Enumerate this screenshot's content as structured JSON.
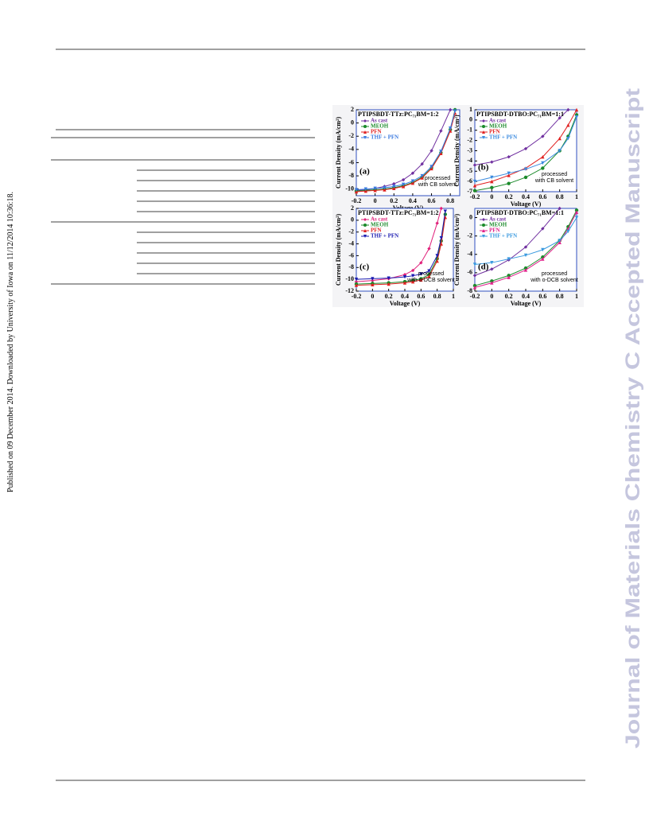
{
  "side_note": "Published on 09 December 2014. Downloaded by University of Iowa on 11/12/2014 10:36:18.",
  "watermark": "Journal of Materials Chemistry C Accepted Manuscript",
  "chart_data": [
    {
      "type": "line",
      "title": "PTIPSBDT-TTz:PC₇₁BM=1:2",
      "panel": "(a)",
      "annotation": [
        "processed",
        "with CB solvent"
      ],
      "x_label": "Voltage (V)",
      "y_label": "Current Density (mA/cm²)",
      "x": [
        -0.2,
        -0.1,
        0,
        0.1,
        0.2,
        0.3,
        0.4,
        0.5,
        0.6,
        0.7,
        0.8,
        0.85
      ],
      "xlim": [
        -0.2,
        0.9
      ],
      "ylim": [
        -11,
        2
      ],
      "xticks": [
        -0.2,
        0,
        0.2,
        0.4,
        0.6,
        0.8
      ],
      "yticks": [
        -10,
        -8,
        -6,
        -4,
        -2,
        0,
        2
      ],
      "series": [
        {
          "name": "As cast",
          "color": "#7030a0",
          "values": [
            -10.2,
            -10.1,
            -9.9,
            -9.6,
            -9.2,
            -8.6,
            -7.6,
            -6.2,
            -4.2,
            -1.2,
            2,
            null
          ]
        },
        {
          "name": "MEOH",
          "color": "#1a8a2a",
          "values": [
            -10.3,
            -10.2,
            -10.1,
            -10,
            -9.8,
            -9.5,
            -9.0,
            -8.2,
            -6.8,
            -4.5,
            -1,
            2
          ]
        },
        {
          "name": "PFN",
          "color": "#e02020",
          "values": [
            -10.4,
            -10.3,
            -10.2,
            -10.1,
            -9.9,
            -9.6,
            -9.1,
            -8.3,
            -6.9,
            -4.6,
            -1.2,
            1.5
          ]
        },
        {
          "name": "THF + PFN",
          "color": "#3a7adf",
          "values": [
            -10.1,
            -10,
            -9.9,
            -9.8,
            -9.6,
            -9.3,
            -8.8,
            -8.0,
            -6.6,
            -4.3,
            -0.8,
            1.8
          ]
        }
      ]
    },
    {
      "type": "line",
      "title": "PTIPSBDT-DTBO:PC₇₁BM=1:1",
      "panel": "(b)",
      "annotation": [
        "processed",
        "with CB solvent"
      ],
      "x_label": "Voltage (V)",
      "y_label": "Current Density (mA/cm²)",
      "x": [
        -0.2,
        0,
        0.2,
        0.4,
        0.6,
        0.8,
        0.9,
        1
      ],
      "xlim": [
        -0.2,
        1
      ],
      "ylim": [
        -7,
        1
      ],
      "xticks": [
        -0.2,
        0,
        0.2,
        0.4,
        0.6,
        0.8,
        1
      ],
      "yticks": [
        -7,
        -6,
        -5,
        -4,
        -3,
        -2,
        -1,
        0,
        1
      ],
      "series": [
        {
          "name": "As cast",
          "color": "#7030a0",
          "values": [
            -4.4,
            -4.1,
            -3.6,
            -2.8,
            -1.6,
            0.2,
            1,
            null
          ]
        },
        {
          "name": "MEOH",
          "color": "#1a8a2a",
          "values": [
            -6.9,
            -6.6,
            -6.2,
            -5.6,
            -4.7,
            -3.0,
            -1.6,
            0.5
          ]
        },
        {
          "name": "PFN",
          "color": "#e02020",
          "values": [
            -6.4,
            -6.0,
            -5.4,
            -4.7,
            -3.6,
            -1.8,
            -0.5,
            1
          ]
        },
        {
          "name": "THF + PFN",
          "color": "#3a8adf",
          "values": [
            -6.0,
            -5.6,
            -5.2,
            -4.8,
            -4.2,
            -3.0,
            -1.8,
            0.3
          ]
        }
      ]
    },
    {
      "type": "line",
      "title": "PTIPSBDT-TTz:PC₇₁BM=1:2",
      "panel": "(c)",
      "annotation": [
        "processed",
        "with o-DCB solvent"
      ],
      "x_label": "Voltage (V)",
      "y_label": "Current Density (mA/cm²)",
      "x": [
        -0.2,
        0,
        0.2,
        0.4,
        0.5,
        0.6,
        0.7,
        0.8,
        0.85,
        0.9
      ],
      "xlim": [
        -0.2,
        1
      ],
      "ylim": [
        -12,
        2
      ],
      "xticks": [
        -0.2,
        0,
        0.2,
        0.4,
        0.6,
        0.8,
        1
      ],
      "yticks": [
        -12,
        -10,
        -8,
        -6,
        -4,
        -2,
        0,
        2
      ],
      "series": [
        {
          "name": "As cast",
          "color": "#e0207a",
          "values": [
            -10.4,
            -10.2,
            -9.9,
            -9.2,
            -8.5,
            -7.2,
            -4.8,
            -0.5,
            2,
            null
          ]
        },
        {
          "name": "MEOH",
          "color": "#1a8a2a",
          "values": [
            -10.8,
            -10.7,
            -10.6,
            -10.4,
            -10.2,
            -9.9,
            -9.2,
            -6.5,
            -3.5,
            1
          ]
        },
        {
          "name": "PFN",
          "color": "#e02020",
          "values": [
            -11,
            -10.9,
            -10.8,
            -10.6,
            -10.4,
            -10.1,
            -9.5,
            -6.9,
            -4,
            0.5
          ]
        },
        {
          "name": "THF + PFN",
          "color": "#1a1ab0",
          "values": [
            -10,
            -9.9,
            -9.8,
            -9.6,
            -9.4,
            -9.1,
            -8.6,
            -6.0,
            -3,
            1.5
          ]
        }
      ]
    },
    {
      "type": "line",
      "title": "PTIPSBDT-DTBO:PC₇₁BM=1:1",
      "panel": "(d)",
      "annotation": [
        "processed",
        "with o-DCB solvent"
      ],
      "x_label": "Voltage (V)",
      "y_label": "Current Density (mA/cm²)",
      "x": [
        -0.2,
        0,
        0.2,
        0.4,
        0.6,
        0.8,
        0.9,
        1
      ],
      "xlim": [
        -0.2,
        1
      ],
      "ylim": [
        -8,
        1
      ],
      "xticks": [
        -0.2,
        0,
        0.2,
        0.4,
        0.6,
        0.8,
        1
      ],
      "yticks": [
        -8,
        -6,
        -4,
        -2,
        0
      ],
      "series": [
        {
          "name": "As cast",
          "color": "#7030a0",
          "values": [
            -6.3,
            -5.6,
            -4.6,
            -3.2,
            -1.2,
            1,
            null,
            null
          ]
        },
        {
          "name": "MEOH",
          "color": "#1a8a2a",
          "values": [
            -7.4,
            -6.9,
            -6.3,
            -5.5,
            -4.3,
            -2.5,
            -1,
            0.8
          ]
        },
        {
          "name": "PFN",
          "color": "#e0208a",
          "values": [
            -7.6,
            -7.1,
            -6.5,
            -5.7,
            -4.5,
            -2.7,
            -1.2,
            0.6
          ]
        },
        {
          "name": "THF + PFN",
          "color": "#3a9adf",
          "values": [
            -5.1,
            -4.9,
            -4.5,
            -4.1,
            -3.5,
            -2.5,
            -1.5,
            0
          ]
        }
      ]
    }
  ]
}
